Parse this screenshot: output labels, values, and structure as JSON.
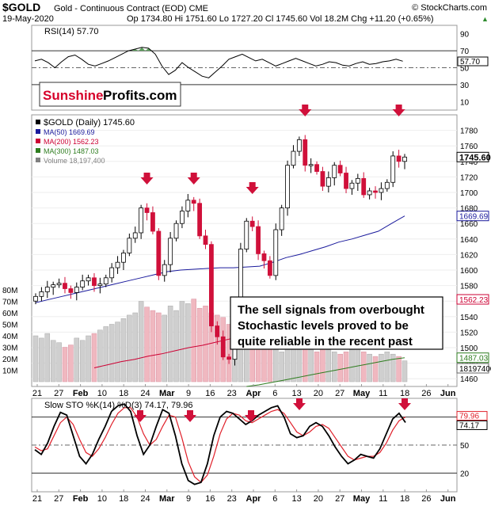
{
  "header": {
    "symbol": "$GOLD",
    "name": "Gold - Continuous Contract (EOD) CME",
    "watermark": "© StockCharts.com",
    "date": "19-May-2020",
    "quote": "Op 1734.80  Hi 1751.60  Lo 1727.20  Cl 1745.60  Vol 18.2M  Chg +11.20 (+0.65%)",
    "quote_arrow": "▲"
  },
  "logo": {
    "part1": "Sunshine",
    "part2": "Profits.com"
  },
  "annotation": [
    "The sell signals from overbought",
    "Stochastic levels proved to be",
    "quite reliable in the recent past"
  ],
  "chart_data": [
    {
      "type": "line",
      "panel": "RSI",
      "legend": "RSI(14) 57.70",
      "ylim": [
        0,
        100
      ],
      "y_ticks": [
        10,
        30,
        50,
        70,
        90
      ],
      "levels": [
        30,
        50,
        70
      ],
      "last_value": "57.70",
      "values": [
        58,
        60,
        56,
        50,
        57,
        63,
        65,
        60,
        54,
        52,
        55,
        58,
        62,
        66,
        70,
        72,
        74,
        73,
        66,
        52,
        42,
        47,
        56,
        50,
        45,
        40,
        38,
        45,
        52,
        60,
        63,
        66,
        62,
        58,
        60,
        56,
        52,
        55,
        58,
        61,
        58,
        55,
        52,
        54,
        57,
        56,
        53,
        52,
        55,
        57,
        54,
        55,
        57,
        58,
        60,
        57.7
      ]
    },
    {
      "type": "candlestick",
      "panel": "Price",
      "legend": [
        {
          "label": "$GOLD (Daily) 1745.60",
          "color": "#000000"
        },
        {
          "label": "MA(50) 1669.69",
          "color": "#1a1a9c"
        },
        {
          "label": "MA(200) 1562.23",
          "color": "#cc0033"
        },
        {
          "label": "MA(300) 1487.03",
          "color": "#2e7d1f"
        },
        {
          "label": "Volume 18,197,400",
          "color": "#808080"
        }
      ],
      "ylim": [
        1450,
        1800
      ],
      "y_ticks": [
        1460,
        1480,
        1500,
        1520,
        1540,
        1560,
        1580,
        1600,
        1620,
        1640,
        1660,
        1680,
        1700,
        1720,
        1740,
        1760,
        1780
      ],
      "last_labels": {
        "price": "1745.60",
        "ma50": "1669.69",
        "ma200": "1562.23",
        "ma300": "1487.03",
        "volume": "18197400"
      },
      "volume_ticks": [
        "10M",
        "20M",
        "30M",
        "40M",
        "50M",
        "60M",
        "70M",
        "80M"
      ],
      "x_labels": [
        "21",
        "27",
        "Feb",
        "10",
        "18",
        "24",
        "Mar",
        "9",
        "16",
        "23",
        "Apr",
        "6",
        "13",
        "20",
        "27",
        "May",
        "11",
        "18",
        "26",
        "Jun"
      ],
      "closes": [
        1566,
        1572,
        1578,
        1581,
        1583,
        1576,
        1571,
        1578,
        1586,
        1590,
        1580,
        1582,
        1590,
        1603,
        1610,
        1622,
        1641,
        1648,
        1680,
        1674,
        1650,
        1593,
        1607,
        1641,
        1660,
        1676,
        1690,
        1686,
        1644,
        1633,
        1528,
        1514,
        1488,
        1485,
        1525,
        1627,
        1663,
        1656,
        1621,
        1612,
        1593,
        1652,
        1680,
        1735,
        1753,
        1768,
        1735,
        1736,
        1727,
        1708,
        1719,
        1735,
        1725,
        1705,
        1712,
        1718,
        1697,
        1702,
        1700,
        1705,
        1713,
        1747,
        1740,
        1745.6
      ],
      "ma50": [
        1558,
        1562,
        1566,
        1570,
        1574,
        1578,
        1582,
        1586,
        1590,
        1594,
        1598,
        1600,
        1601,
        1602,
        1603,
        1603,
        1604,
        1605,
        1610,
        1616,
        1620,
        1625,
        1630,
        1636,
        1640,
        1645,
        1650,
        1660,
        1669.69
      ],
      "ma200": [
        1474,
        1478,
        1482,
        1485,
        1489,
        1492,
        1496,
        1500,
        1503,
        1507,
        1511,
        1515,
        1519,
        1523,
        1527,
        1531,
        1535,
        1539,
        1543,
        1547,
        1551,
        1555,
        1559,
        1562.23
      ],
      "ma300": [
        1450,
        1452,
        1455,
        1458,
        1461,
        1464,
        1467,
        1470,
        1473,
        1476,
        1479,
        1482,
        1485,
        1487.03
      ],
      "volume_m": [
        40,
        38,
        42,
        36,
        34,
        30,
        32,
        38,
        36,
        40,
        42,
        45,
        48,
        50,
        52,
        55,
        58,
        60,
        70,
        65,
        62,
        60,
        58,
        66,
        62,
        70,
        68,
        72,
        64,
        66,
        60,
        58,
        56,
        50,
        52,
        60,
        55,
        50,
        42,
        36,
        30,
        28,
        26,
        32,
        30,
        34,
        30,
        28,
        26,
        30,
        28,
        26,
        24,
        26,
        28,
        30,
        26,
        24,
        22,
        24,
        26,
        24,
        22,
        18.2
      ]
    },
    {
      "type": "line",
      "panel": "Stochastic",
      "legend": "Slow STO %K(14) %D(3) 74.17, 79.96",
      "ylim": [
        0,
        100
      ],
      "y_ticks": [
        20,
        50,
        80
      ],
      "levels": [
        20,
        80
      ],
      "last_labels": [
        "79.96",
        "74.17"
      ],
      "x_labels": [
        "21",
        "27",
        "Feb",
        "10",
        "18",
        "24",
        "Mar",
        "9",
        "16",
        "23",
        "Apr",
        "6",
        "13",
        "20",
        "27",
        "May",
        "11",
        "18",
        "26",
        "Jun"
      ],
      "k": [
        45,
        40,
        52,
        70,
        85,
        82,
        60,
        38,
        30,
        40,
        56,
        70,
        86,
        92,
        94,
        86,
        60,
        40,
        50,
        70,
        88,
        84,
        60,
        30,
        12,
        8,
        10,
        30,
        60,
        80,
        86,
        84,
        78,
        72,
        76,
        82,
        86,
        90,
        92,
        80,
        62,
        58,
        60,
        70,
        74,
        70,
        60,
        48,
        38,
        30,
        34,
        40,
        38,
        36,
        46,
        62,
        78,
        84,
        74.17
      ],
      "d": [
        48,
        44,
        46,
        60,
        74,
        80,
        72,
        56,
        42,
        38,
        46,
        58,
        72,
        84,
        90,
        90,
        80,
        62,
        50,
        56,
        70,
        82,
        80,
        58,
        32,
        16,
        10,
        18,
        38,
        62,
        78,
        84,
        82,
        76,
        74,
        78,
        82,
        86,
        88,
        84,
        74,
        64,
        60,
        64,
        70,
        72,
        68,
        58,
        48,
        38,
        34,
        36,
        38,
        38,
        42,
        52,
        66,
        76,
        79.96
      ]
    }
  ],
  "arrows_note": "red down arrows mark sell signals"
}
